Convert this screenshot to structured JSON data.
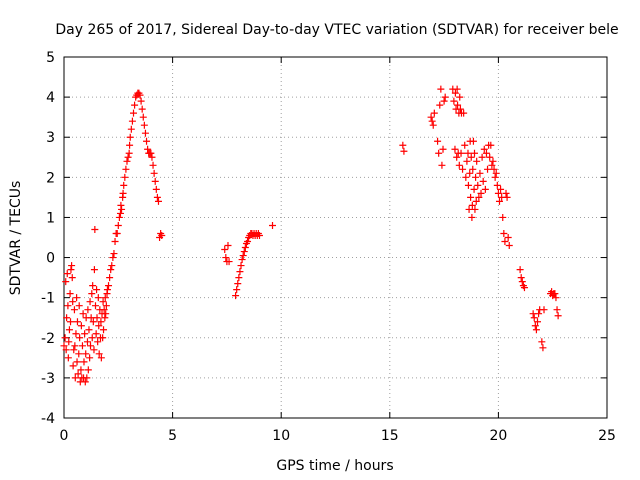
{
  "chart_data": {
    "type": "scatter",
    "title": "Day 265 of 2017, Sidereal Day-to-day VTEC variation (SDTVAR) for receiver bele",
    "xlabel": "GPS time / hours",
    "ylabel": "SDTVAR / TECUs",
    "xlim": [
      0,
      25
    ],
    "ylim": [
      -4,
      5
    ],
    "xticks": [
      0,
      5,
      10,
      15,
      20,
      25
    ],
    "yticks": [
      -4,
      -3,
      -2,
      -1,
      0,
      1,
      2,
      3,
      4,
      5
    ],
    "grid": true,
    "marker": "+",
    "series": [
      {
        "name": "SDTVAR",
        "color": "#ff0000",
        "points": [
          [
            0.0,
            -2.2
          ],
          [
            0.05,
            -2.0
          ],
          [
            0.08,
            -0.6
          ],
          [
            0.1,
            -2.3
          ],
          [
            0.12,
            -1.5
          ],
          [
            0.15,
            -0.4
          ],
          [
            0.18,
            -1.2
          ],
          [
            0.2,
            -2.5
          ],
          [
            0.22,
            -2.1
          ],
          [
            0.25,
            -1.8
          ],
          [
            0.28,
            -0.9
          ],
          [
            0.3,
            -1.6
          ],
          [
            0.32,
            -0.3
          ],
          [
            0.35,
            -0.2
          ],
          [
            0.38,
            -0.5
          ],
          [
            0.4,
            -1.1
          ],
          [
            0.42,
            -2.7
          ],
          [
            0.45,
            -2.3
          ],
          [
            0.48,
            -1.3
          ],
          [
            0.5,
            -2.2
          ],
          [
            0.52,
            -3.0
          ],
          [
            0.55,
            -1.9
          ],
          [
            0.58,
            -1.0
          ],
          [
            0.6,
            -2.6
          ],
          [
            0.62,
            -1.6
          ],
          [
            0.65,
            -2.9
          ],
          [
            0.68,
            -2.4
          ],
          [
            0.7,
            -1.2
          ],
          [
            0.72,
            -2.0
          ],
          [
            0.75,
            -3.1
          ],
          [
            0.78,
            -2.8
          ],
          [
            0.8,
            -1.7
          ],
          [
            0.82,
            -3.0
          ],
          [
            0.85,
            -2.2
          ],
          [
            0.88,
            -1.4
          ],
          [
            0.9,
            -3.0
          ],
          [
            0.92,
            -2.6
          ],
          [
            0.95,
            -1.9
          ],
          [
            0.98,
            -3.1
          ],
          [
            1.0,
            -2.4
          ],
          [
            1.02,
            -1.5
          ],
          [
            1.05,
            -3.0
          ],
          [
            1.08,
            -2.1
          ],
          [
            1.1,
            -1.3
          ],
          [
            1.12,
            -2.8
          ],
          [
            1.15,
            -1.8
          ],
          [
            1.18,
            -2.5
          ],
          [
            1.2,
            -1.1
          ],
          [
            1.22,
            -2.2
          ],
          [
            1.25,
            -1.5
          ],
          [
            1.28,
            -0.9
          ],
          [
            1.3,
            -2.0
          ],
          [
            1.32,
            -0.7
          ],
          [
            1.35,
            -1.6
          ],
          [
            1.38,
            -2.3
          ],
          [
            1.4,
            -0.3
          ],
          [
            1.42,
            0.7
          ],
          [
            1.45,
            -1.2
          ],
          [
            1.48,
            -1.9
          ],
          [
            1.5,
            -0.8
          ],
          [
            1.52,
            -1.5
          ],
          [
            1.55,
            -2.1
          ],
          [
            1.58,
            -1.0
          ],
          [
            1.6,
            -1.7
          ],
          [
            1.62,
            -2.4
          ],
          [
            1.65,
            -1.3
          ],
          [
            1.68,
            -2.0
          ],
          [
            1.7,
            -1.6
          ],
          [
            1.72,
            -2.5
          ],
          [
            1.75,
            -1.4
          ],
          [
            1.78,
            -2.0
          ],
          [
            1.8,
            -1.1
          ],
          [
            1.82,
            -1.8
          ],
          [
            1.85,
            -1.3
          ],
          [
            1.88,
            -1.5
          ],
          [
            1.9,
            -1.0
          ],
          [
            1.92,
            -1.4
          ],
          [
            1.95,
            -1.2
          ],
          [
            1.98,
            -0.9
          ],
          [
            2.0,
            -0.8
          ],
          [
            2.05,
            -0.7
          ],
          [
            2.1,
            -0.5
          ],
          [
            2.15,
            -0.3
          ],
          [
            2.2,
            -0.2
          ],
          [
            2.25,
            0.0
          ],
          [
            2.3,
            0.1
          ],
          [
            2.35,
            0.4
          ],
          [
            2.4,
            0.6
          ],
          [
            2.45,
            0.6
          ],
          [
            2.5,
            0.8
          ],
          [
            2.55,
            1.0
          ],
          [
            2.6,
            1.1
          ],
          [
            2.62,
            1.3
          ],
          [
            2.65,
            1.2
          ],
          [
            2.7,
            1.5
          ],
          [
            2.72,
            1.6
          ],
          [
            2.75,
            1.8
          ],
          [
            2.8,
            2.0
          ],
          [
            2.85,
            2.2
          ],
          [
            2.9,
            2.4
          ],
          [
            2.95,
            2.5
          ],
          [
            3.0,
            2.6
          ],
          [
            3.02,
            2.8
          ],
          [
            3.05,
            3.0
          ],
          [
            3.1,
            3.2
          ],
          [
            3.15,
            3.4
          ],
          [
            3.2,
            3.6
          ],
          [
            3.25,
            3.8
          ],
          [
            3.3,
            4.0
          ],
          [
            3.35,
            4.05
          ],
          [
            3.4,
            4.1
          ],
          [
            3.45,
            4.1
          ],
          [
            3.5,
            4.05
          ],
          [
            3.55,
            3.9
          ],
          [
            3.6,
            3.7
          ],
          [
            3.65,
            3.5
          ],
          [
            3.7,
            3.3
          ],
          [
            3.75,
            3.1
          ],
          [
            3.8,
            2.9
          ],
          [
            3.85,
            2.7
          ],
          [
            3.9,
            2.6
          ],
          [
            3.95,
            2.6
          ],
          [
            4.0,
            2.6
          ],
          [
            4.05,
            2.5
          ],
          [
            4.1,
            2.3
          ],
          [
            4.15,
            2.1
          ],
          [
            4.2,
            1.9
          ],
          [
            4.25,
            1.7
          ],
          [
            4.3,
            1.5
          ],
          [
            4.35,
            1.4
          ],
          [
            4.4,
            0.5
          ],
          [
            4.45,
            0.6
          ],
          [
            4.5,
            0.55
          ],
          [
            7.4,
            0.2
          ],
          [
            7.45,
            0.0
          ],
          [
            7.5,
            -0.1
          ],
          [
            7.55,
            0.3
          ],
          [
            7.6,
            -0.1
          ],
          [
            7.9,
            -0.95
          ],
          [
            7.95,
            -0.8
          ],
          [
            8.0,
            -0.65
          ],
          [
            8.05,
            -0.5
          ],
          [
            8.1,
            -0.35
          ],
          [
            8.15,
            -0.2
          ],
          [
            8.2,
            -0.05
          ],
          [
            8.25,
            0.05
          ],
          [
            8.3,
            0.15
          ],
          [
            8.35,
            0.25
          ],
          [
            8.4,
            0.35
          ],
          [
            8.45,
            0.4
          ],
          [
            8.5,
            0.5
          ],
          [
            8.55,
            0.55
          ],
          [
            8.6,
            0.6
          ],
          [
            8.65,
            0.6
          ],
          [
            8.7,
            0.55
          ],
          [
            8.75,
            0.6
          ],
          [
            8.8,
            0.55
          ],
          [
            8.85,
            0.6
          ],
          [
            8.9,
            0.55
          ],
          [
            8.95,
            0.6
          ],
          [
            9.0,
            0.55
          ],
          [
            9.6,
            0.8
          ],
          [
            15.6,
            2.8
          ],
          [
            15.65,
            2.65
          ],
          [
            16.9,
            3.5
          ],
          [
            16.95,
            3.4
          ],
          [
            17.0,
            3.3
          ],
          [
            17.05,
            3.6
          ],
          [
            17.2,
            2.9
          ],
          [
            17.25,
            2.6
          ],
          [
            17.3,
            3.8
          ],
          [
            17.35,
            4.2
          ],
          [
            17.4,
            2.3
          ],
          [
            17.45,
            2.7
          ],
          [
            17.5,
            3.9
          ],
          [
            17.55,
            4.0
          ],
          [
            17.9,
            4.2
          ],
          [
            17.95,
            3.9
          ],
          [
            18.0,
            2.7
          ],
          [
            18.02,
            4.1
          ],
          [
            18.05,
            3.7
          ],
          [
            18.08,
            2.5
          ],
          [
            18.1,
            4.2
          ],
          [
            18.12,
            3.8
          ],
          [
            18.15,
            2.6
          ],
          [
            18.18,
            3.6
          ],
          [
            18.2,
            2.3
          ],
          [
            18.22,
            4.0
          ],
          [
            18.25,
            3.7
          ],
          [
            18.28,
            2.6
          ],
          [
            18.3,
            3.6
          ],
          [
            18.35,
            2.2
          ],
          [
            18.4,
            3.6
          ],
          [
            18.45,
            2.8
          ],
          [
            18.5,
            2.0
          ],
          [
            18.55,
            2.4
          ],
          [
            18.6,
            2.6
          ],
          [
            18.62,
            1.8
          ],
          [
            18.65,
            1.2
          ],
          [
            18.68,
            2.1
          ],
          [
            18.7,
            2.9
          ],
          [
            18.72,
            1.5
          ],
          [
            18.75,
            2.5
          ],
          [
            18.78,
            1.0
          ],
          [
            18.8,
            1.3
          ],
          [
            18.82,
            2.2
          ],
          [
            18.85,
            2.9
          ],
          [
            18.88,
            1.7
          ],
          [
            18.9,
            2.6
          ],
          [
            18.92,
            1.2
          ],
          [
            18.95,
            2.0
          ],
          [
            18.98,
            1.4
          ],
          [
            19.0,
            2.4
          ],
          [
            19.05,
            1.8
          ],
          [
            19.1,
            1.5
          ],
          [
            19.15,
            2.1
          ],
          [
            19.2,
            1.6
          ],
          [
            19.25,
            2.5
          ],
          [
            19.3,
            1.9
          ],
          [
            19.35,
            2.7
          ],
          [
            19.4,
            1.7
          ],
          [
            19.45,
            2.6
          ],
          [
            19.5,
            2.2
          ],
          [
            19.55,
            2.8
          ],
          [
            19.6,
            2.5
          ],
          [
            19.65,
            2.8
          ],
          [
            19.7,
            2.3
          ],
          [
            19.75,
            2.4
          ],
          [
            19.8,
            2.2
          ],
          [
            19.85,
            2.0
          ],
          [
            19.9,
            2.1
          ],
          [
            19.95,
            1.8
          ],
          [
            20.0,
            1.6
          ],
          [
            20.05,
            1.4
          ],
          [
            20.1,
            1.7
          ],
          [
            20.15,
            1.5
          ],
          [
            20.2,
            1.0
          ],
          [
            20.25,
            0.6
          ],
          [
            20.3,
            0.4
          ],
          [
            20.35,
            1.6
          ],
          [
            20.4,
            1.5
          ],
          [
            20.45,
            0.5
          ],
          [
            20.5,
            0.3
          ],
          [
            21.0,
            -0.3
          ],
          [
            21.05,
            -0.5
          ],
          [
            21.1,
            -0.6
          ],
          [
            21.15,
            -0.7
          ],
          [
            21.2,
            -0.75
          ],
          [
            21.6,
            -1.4
          ],
          [
            21.65,
            -1.5
          ],
          [
            21.7,
            -1.7
          ],
          [
            21.75,
            -1.8
          ],
          [
            21.8,
            -1.6
          ],
          [
            21.85,
            -1.4
          ],
          [
            21.9,
            -1.3
          ],
          [
            22.0,
            -2.1
          ],
          [
            22.05,
            -2.25
          ],
          [
            22.1,
            -1.3
          ],
          [
            22.4,
            -0.9
          ],
          [
            22.45,
            -0.85
          ],
          [
            22.5,
            -0.95
          ],
          [
            22.55,
            -0.9
          ],
          [
            22.6,
            -0.9
          ],
          [
            22.65,
            -1.0
          ],
          [
            22.7,
            -1.3
          ],
          [
            22.75,
            -1.45
          ]
        ]
      }
    ]
  }
}
